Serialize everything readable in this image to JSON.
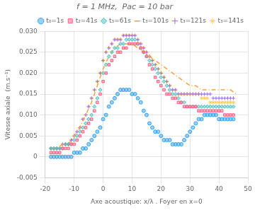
{
  "chart_data": {
    "type": "scatter",
    "title": "f = 1 MHz,  Pac = 10 bar",
    "x_label": "Axe acoustique: x/λ . Foyer en x=0",
    "y_label": "Vitesse axiale  (m.s⁻¹)",
    "xlim": [
      -20,
      50
    ],
    "ylim": [
      -0.005,
      0.03
    ],
    "xticks": [
      -20,
      -10,
      0,
      10,
      20,
      30,
      40,
      50
    ],
    "yticks": [
      -0.005,
      0,
      0.005,
      {
        "value": 0.01,
        "label": "0.010"
      },
      0.015,
      {
        "value": 0.02,
        "label": "0.020"
      },
      0.025,
      {
        "value": 0.03,
        "label": "0.030"
      }
    ],
    "grid": true,
    "legend": "upper right",
    "series": [
      {
        "name": "t₀=1s",
        "marker": "circle",
        "x": [
          -18,
          -17,
          -16,
          -15,
          -14,
          -13,
          -12,
          -11,
          -10,
          -9,
          -8,
          -7,
          -6,
          -5,
          -4,
          -3,
          -2,
          -1,
          0,
          1,
          2,
          3,
          4,
          5,
          6,
          7,
          8,
          9,
          10,
          11,
          12,
          13,
          14,
          15,
          16,
          17,
          18,
          19,
          20,
          21,
          22,
          23,
          24,
          25,
          26,
          27,
          28,
          29,
          30,
          31,
          32,
          33,
          34,
          35,
          36,
          37,
          38,
          39,
          40,
          41,
          42,
          43,
          44,
          45
        ],
        "values": [
          0.0,
          0.0,
          0.0,
          0.0,
          0.0,
          0.0,
          0.0,
          0.0,
          0.001,
          0.001,
          0.001,
          0.002,
          0.002,
          0.003,
          0.004,
          0.005,
          0.006,
          0.007,
          0.009,
          0.01,
          0.012,
          0.013,
          0.014,
          0.015,
          0.016,
          0.016,
          0.016,
          0.016,
          0.015,
          0.015,
          0.014,
          0.013,
          0.011,
          0.01,
          0.008,
          0.007,
          0.006,
          0.006,
          0.005,
          0.004,
          0.004,
          0.004,
          0.003,
          0.003,
          0.003,
          0.003,
          0.004,
          0.005,
          0.006,
          0.007,
          0.008,
          0.009,
          0.009,
          0.01,
          0.01,
          0.01,
          0.01,
          0.01,
          0.009,
          0.009,
          0.009,
          0.009,
          0.009,
          0.009
        ]
      },
      {
        "name": "t₂=41s",
        "marker": "square",
        "x": [
          -18,
          -17,
          -16,
          -15,
          -14,
          -13,
          -12,
          -11,
          -10,
          -9,
          -8,
          -7,
          -6,
          -5,
          -4,
          -3,
          -2,
          -1,
          0,
          1,
          2,
          3,
          4,
          5,
          6,
          7,
          8,
          9,
          10,
          11,
          12,
          13,
          14,
          15,
          16,
          17,
          18,
          19,
          20,
          21,
          22,
          23,
          24,
          25,
          26,
          27,
          28,
          29,
          30,
          31,
          32,
          33,
          34,
          35,
          36,
          37,
          38,
          39,
          40,
          41,
          42,
          43,
          44,
          45
        ],
        "values": [
          0.001,
          0.001,
          0.001,
          0.001,
          0.002,
          0.002,
          0.002,
          0.003,
          0.003,
          0.004,
          0.005,
          0.006,
          0.007,
          0.008,
          0.009,
          0.011,
          0.013,
          0.015,
          0.018,
          0.02,
          0.022,
          0.023,
          0.024,
          0.025,
          0.025,
          0.026,
          0.026,
          0.027,
          0.027,
          0.027,
          0.027,
          0.026,
          0.025,
          0.024,
          0.022,
          0.021,
          0.019,
          0.018,
          0.017,
          0.016,
          0.015,
          0.015,
          0.014,
          0.014,
          0.013,
          0.013,
          0.012,
          0.012,
          0.012,
          0.012,
          0.012,
          0.011,
          0.011,
          0.011,
          0.011,
          0.011,
          0.011,
          0.011,
          0.011,
          0.011,
          0.01,
          0.01,
          0.01,
          0.01
        ]
      },
      {
        "name": "t₃=61s",
        "marker": "diamond",
        "x": [
          -18,
          -17,
          -16,
          -15,
          -14,
          -13,
          -12,
          -11,
          -10,
          -9,
          -8,
          -7,
          -6,
          -5,
          -4,
          -3,
          -2,
          -1,
          0,
          1,
          2,
          3,
          4,
          5,
          6,
          7,
          8,
          9,
          10,
          11,
          12,
          13,
          14,
          15,
          16,
          17,
          18,
          19,
          20,
          21,
          22,
          23,
          24,
          25,
          26,
          27,
          28,
          29,
          30,
          31,
          32,
          33,
          34,
          35,
          36,
          37,
          38,
          39,
          40,
          41,
          42,
          43,
          44,
          45
        ],
        "values": [
          0.002,
          0.002,
          0.002,
          0.002,
          0.002,
          0.003,
          0.003,
          0.003,
          0.004,
          0.005,
          0.006,
          0.007,
          0.008,
          0.009,
          0.01,
          0.012,
          0.014,
          0.016,
          0.02,
          0.022,
          0.024,
          0.025,
          0.026,
          0.026,
          0.027,
          0.027,
          0.028,
          0.028,
          0.028,
          0.028,
          0.027,
          0.026,
          0.025,
          0.024,
          0.023,
          0.022,
          0.021,
          0.02,
          0.019,
          0.018,
          0.017,
          0.016,
          0.015,
          0.015,
          0.014,
          0.013,
          0.013,
          0.012,
          0.012,
          0.012,
          0.012,
          0.012,
          0.012,
          0.012,
          0.012,
          0.012,
          0.012,
          0.012,
          0.012,
          0.012,
          0.012,
          0.012,
          0.012,
          0.012
        ]
      },
      {
        "name": "t₃=101s",
        "type": "line",
        "line_style": "dashdot",
        "x": [
          -18,
          -16,
          -14,
          -12,
          -10,
          -8,
          -6,
          -4,
          -2,
          0,
          2,
          4,
          6,
          8,
          10,
          12,
          14,
          16,
          18,
          20,
          22,
          24,
          26,
          28,
          30,
          32,
          34,
          36,
          38,
          40,
          42,
          44,
          46
        ],
        "values": [
          0.002,
          0.002,
          0.003,
          0.003,
          0.005,
          0.007,
          0.01,
          0.013,
          0.017,
          0.021,
          0.024,
          0.026,
          0.027,
          0.027,
          0.027,
          0.026,
          0.025,
          0.024,
          0.023,
          0.022,
          0.021,
          0.02,
          0.019,
          0.018,
          0.017,
          0.017,
          0.016,
          0.016,
          0.016,
          0.016,
          0.016,
          0.016,
          0.015
        ]
      },
      {
        "name": "t₃=121s",
        "marker": "plus",
        "x": [
          -18,
          -17,
          -16,
          -15,
          -14,
          -13,
          -12,
          -11,
          -10,
          -9,
          -8,
          -7,
          -6,
          -5,
          -4,
          -3,
          -2,
          -1,
          0,
          1,
          2,
          3,
          4,
          5,
          6,
          7,
          8,
          9,
          10,
          11,
          12,
          13,
          14,
          15,
          16,
          17,
          18,
          19,
          20,
          21,
          22,
          23,
          24,
          25,
          26,
          27,
          28,
          29,
          30,
          31,
          32,
          33,
          34,
          35,
          36,
          37,
          38,
          39,
          40,
          41,
          42,
          43,
          44,
          45
        ],
        "values": [
          0.002,
          0.002,
          0.002,
          0.002,
          0.003,
          0.003,
          0.003,
          0.004,
          0.005,
          0.006,
          0.007,
          0.009,
          0.01,
          0.012,
          0.014,
          0.016,
          0.018,
          0.02,
          0.023,
          0.025,
          0.026,
          0.027,
          0.028,
          0.028,
          0.028,
          0.029,
          0.029,
          0.029,
          0.029,
          0.029,
          0.028,
          0.027,
          0.026,
          0.025,
          0.024,
          0.023,
          0.022,
          0.021,
          0.02,
          0.019,
          0.018,
          0.017,
          0.016,
          0.016,
          0.015,
          0.015,
          0.015,
          0.015,
          0.015,
          0.015,
          0.015,
          0.015,
          0.015,
          0.015,
          0.015,
          0.015,
          0.014,
          0.014,
          0.014,
          0.014,
          0.014,
          0.014,
          0.014,
          0.014
        ]
      },
      {
        "name": "t₃=141s",
        "marker": "star",
        "x": [
          -18,
          -17,
          -16,
          -15,
          -14,
          -13,
          -12,
          -11,
          -10,
          -9,
          -8,
          -7,
          -6,
          -5,
          -4,
          -3,
          -2,
          -1,
          0,
          1,
          2,
          3,
          4,
          5,
          6,
          7,
          8,
          9,
          10,
          11,
          12,
          13,
          14,
          15,
          16,
          17,
          18,
          19,
          20,
          21,
          22,
          23,
          24,
          25,
          26,
          27,
          28,
          29,
          30,
          31,
          32,
          33,
          34,
          35,
          36,
          37,
          38,
          39,
          40,
          41,
          42,
          43,
          44,
          45
        ],
        "values": [
          0.002,
          0.002,
          0.002,
          0.002,
          0.003,
          0.003,
          0.003,
          0.004,
          0.005,
          0.006,
          0.007,
          0.009,
          0.01,
          0.012,
          0.014,
          0.016,
          0.018,
          0.02,
          0.023,
          0.025,
          0.026,
          0.027,
          0.028,
          0.028,
          0.028,
          0.029,
          0.029,
          0.029,
          0.029,
          0.029,
          0.028,
          0.027,
          0.026,
          0.025,
          0.024,
          0.023,
          0.022,
          0.021,
          0.02,
          0.019,
          0.018,
          0.017,
          0.016,
          0.016,
          0.015,
          0.015,
          0.015,
          0.015,
          0.015,
          0.015,
          0.015,
          0.015,
          0.014,
          0.014,
          0.014,
          0.013,
          0.013,
          0.013,
          0.013,
          0.013,
          0.013,
          0.013,
          0.013,
          0.013
        ]
      }
    ]
  }
}
